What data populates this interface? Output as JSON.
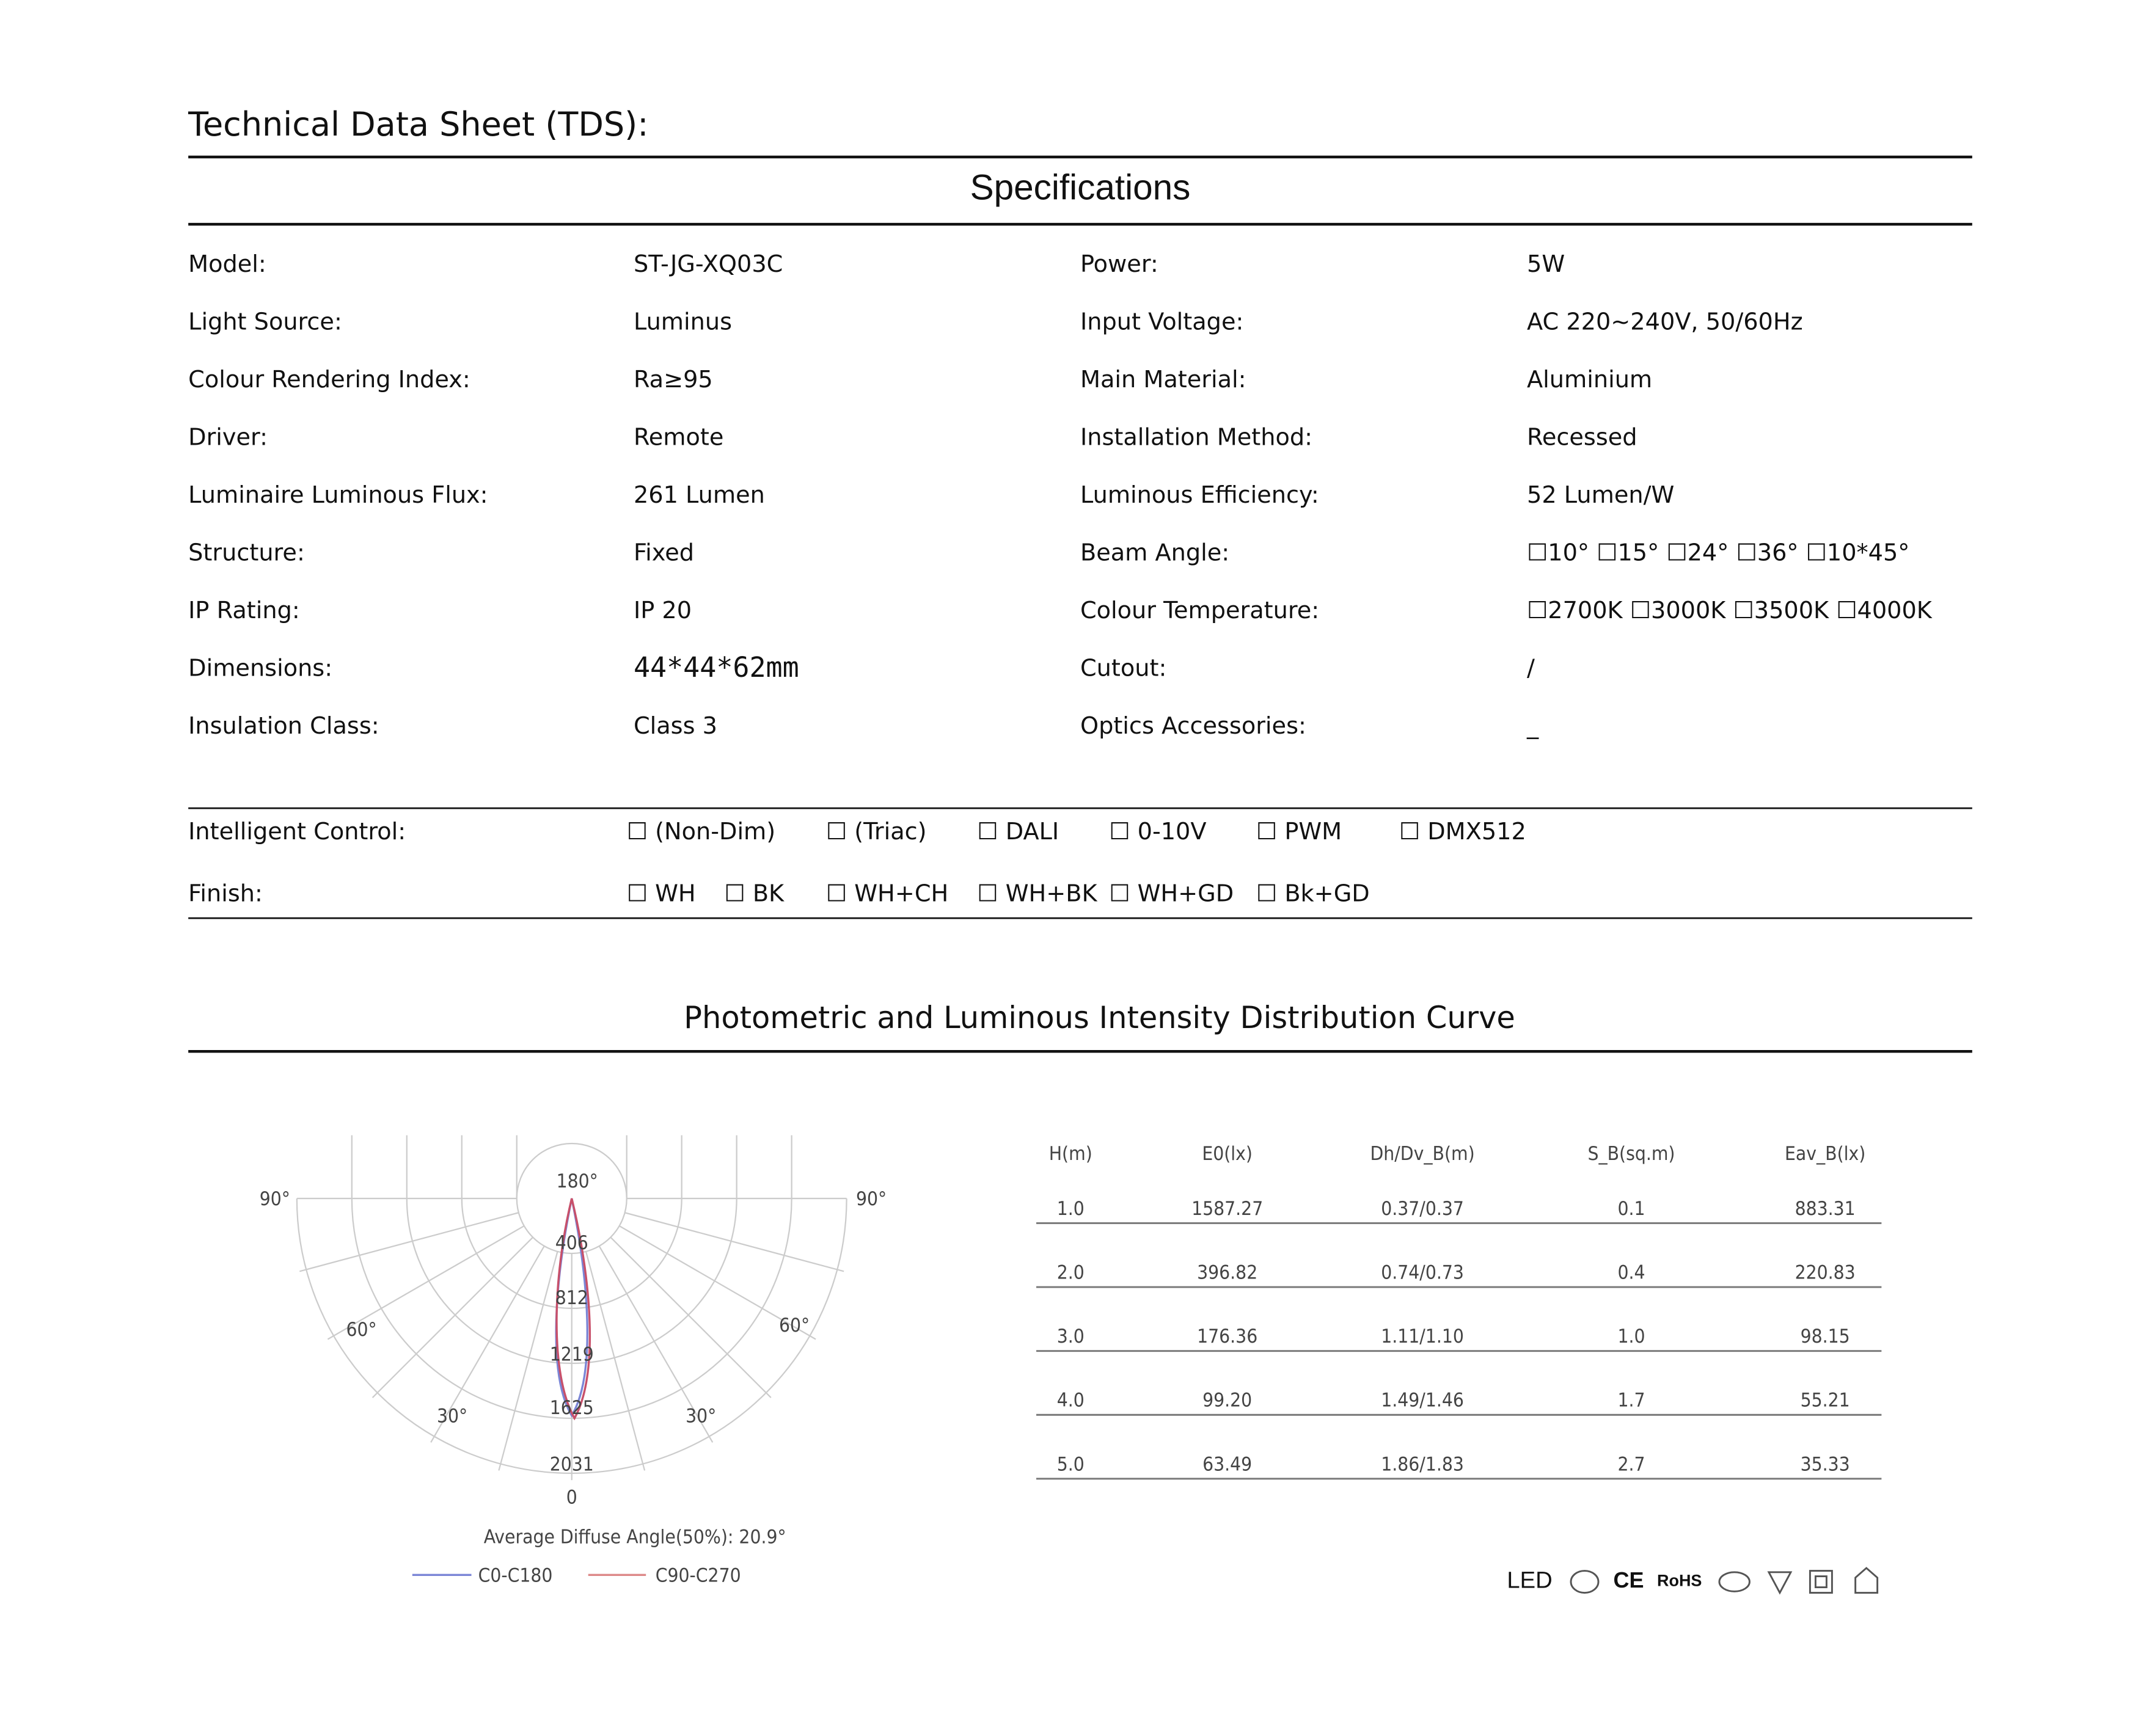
{
  "header": {
    "title": "Technical  Data Sheet (TDS):",
    "section": "Specifications"
  },
  "specs": [
    [
      "Model:",
      "ST-JG-XQ03C",
      "Power:",
      "5W"
    ],
    [
      "Light Source:",
      "Luminus",
      "Input Voltage:",
      "AC 220~240V, 50/60Hz"
    ],
    [
      "Colour Rendering Index:",
      "Ra≥95",
      "Main Material:",
      "Aluminium"
    ],
    [
      "Driver:",
      "Remote",
      "Installation Method:",
      "Recessed"
    ],
    [
      "Luminaire Luminous Flux:",
      "261  Lumen",
      "Luminous Efficiency:",
      "52 Lumen/W"
    ],
    [
      "Structure:",
      "Fixed",
      "Beam Angle:",
      "☐10°    ☐15°   ☐24°    ☐36°    ☐10*45°"
    ],
    [
      "IP Rating:",
      "IP 20",
      "Colour Temperature:",
      "☐2700K  ☐3000K  ☐3500K  ☐4000K"
    ],
    [
      "Dimensions:",
      "44*44*62mm",
      "Cutout:",
      "/"
    ],
    [
      "Insulation Class:",
      "Class 3",
      "Optics Accessories:",
      "_"
    ]
  ],
  "options": [
    {
      "label": "Intelligent Control:",
      "items": [
        "☐ (Non-Dim)",
        "☐ (Triac)",
        "☐ DALI",
        "☐ 0-10V",
        "☐ PWM",
        "☐ DMX512"
      ]
    },
    {
      "label": "Finish:",
      "items": [
        "☐ WH",
        "☐ BK",
        "☐ WH+CH",
        "☐ WH+BK",
        "☐ WH+GD",
        "☐ Bk+GD"
      ]
    }
  ],
  "photometric": {
    "title": "Photometric and Luminous Intensity Distribution Curve",
    "polar": {
      "center_label": "180°",
      "ring_labels": [
        "406",
        "812",
        "1219",
        "1625",
        "2031"
      ],
      "bottom_label": "0",
      "angle_labels": [
        "90°",
        "90°",
        "60°",
        "60°",
        "30°",
        "30°"
      ],
      "note": "Average Diffuse Angle(50%): 20.9°",
      "legend": [
        "C0-C180",
        "C90-C270"
      ]
    },
    "table": {
      "header": [
        "H(m)",
        "E0(lx)",
        "Dh/Dv_B(m)",
        "S_B(sq.m)",
        "Eav_B(lx)"
      ],
      "rows": [
        [
          "1.0",
          "1587.27",
          "0.37/0.37",
          "0.1",
          "883.31"
        ],
        [
          "2.0",
          "396.82",
          "0.74/0.73",
          "0.4",
          "220.83"
        ],
        [
          "3.0",
          "176.36",
          "1.11/1.10",
          "1.0",
          "98.15"
        ],
        [
          "4.0",
          "99.20",
          "1.49/1.46",
          "1.7",
          "55.21"
        ],
        [
          "5.0",
          "63.49",
          "1.86/1.83",
          "2.7",
          "35.33"
        ]
      ]
    }
  },
  "certifications": [
    "LED",
    "CE",
    "RoHS"
  ]
}
